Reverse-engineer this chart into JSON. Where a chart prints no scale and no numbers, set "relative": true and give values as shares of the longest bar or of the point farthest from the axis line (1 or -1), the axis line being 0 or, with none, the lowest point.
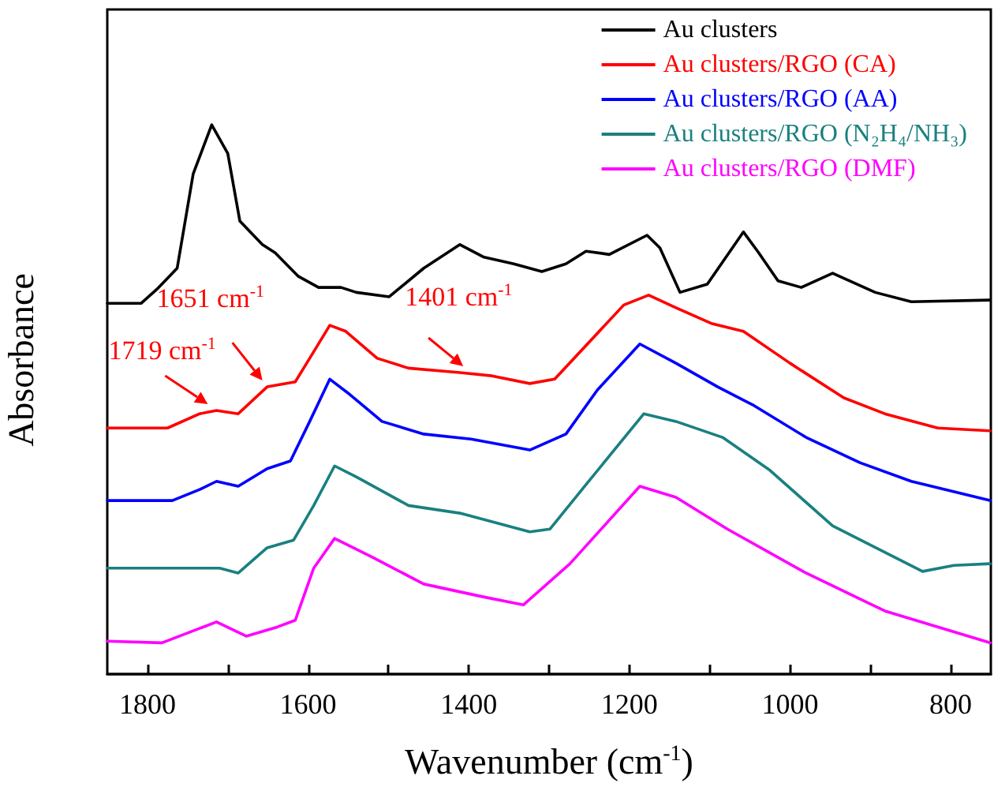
{
  "chart_data": {
    "type": "line",
    "relative": true,
    "xlabel": "Wavenumber (cm$^{-1}$)",
    "ylabel": "Absorbance",
    "tick_labels": "x",
    "legend": "top right",
    "grid": false,
    "marker": "none",
    "line_style": "solid",
    "xlim": [
      1850,
      750
    ],
    "xticks": [
      1800,
      {
        "value": 1700,
        "label": null
      },
      1600,
      {
        "value": 1500,
        "label": null
      },
      1400,
      {
        "value": 1300,
        "label": null
      },
      1200,
      {
        "value": 1100,
        "label": null
      },
      1000,
      {
        "value": 900,
        "label": null
      },
      800
    ],
    "series": [
      {
        "name": "Au clusters",
        "color": "#000000",
        "x": [
          1850,
          1808,
          1788,
          1763,
          1743,
          1720,
          1700,
          1685,
          1657,
          1641,
          1612,
          1587,
          1559,
          1540,
          1499,
          1456,
          1411,
          1381,
          1344,
          1309,
          1279,
          1254,
          1225,
          1178,
          1162,
          1137,
          1103,
          1058,
          1039,
          1015,
          986,
          947,
          894,
          849,
          751
        ],
        "values": [
          0.675,
          0.675,
          0.701,
          0.739,
          0.911,
          1.0,
          0.948,
          0.825,
          0.782,
          0.767,
          0.724,
          0.704,
          0.704,
          0.695,
          0.687,
          0.739,
          0.782,
          0.759,
          0.747,
          0.733,
          0.747,
          0.77,
          0.764,
          0.799,
          0.776,
          0.695,
          0.71,
          0.805,
          0.767,
          0.716,
          0.704,
          0.73,
          0.695,
          0.678,
          0.681
        ]
      },
      {
        "name": "Au clusters/RGO (CA)",
        "color": "#ff0000",
        "x": [
          1850,
          1775,
          1735,
          1714,
          1687,
          1651,
          1616,
          1598,
          1573,
          1553,
          1514,
          1475,
          1411,
          1371,
          1324,
          1293,
          1207,
          1176,
          1142,
          1097,
          1058,
          1000,
          933,
          882,
          816,
          751
        ],
        "values": [
          0.448,
          0.448,
          0.474,
          0.48,
          0.474,
          0.523,
          0.532,
          0.575,
          0.635,
          0.624,
          0.575,
          0.557,
          0.549,
          0.543,
          0.529,
          0.537,
          0.672,
          0.69,
          0.667,
          0.638,
          0.624,
          0.566,
          0.503,
          0.474,
          0.448,
          0.443
        ]
      },
      {
        "name": "Au clusters/RGO (AA)",
        "color": "#0000ff",
        "x": [
          1850,
          1769,
          1735,
          1714,
          1687,
          1651,
          1622,
          1598,
          1573,
          1548,
          1508,
          1456,
          1397,
          1324,
          1279,
          1240,
          1187,
          1142,
          1090,
          1045,
          980,
          913,
          849,
          751
        ],
        "values": [
          0.316,
          0.316,
          0.336,
          0.351,
          0.342,
          0.374,
          0.388,
          0.46,
          0.537,
          0.509,
          0.46,
          0.437,
          0.428,
          0.408,
          0.437,
          0.517,
          0.601,
          0.566,
          0.523,
          0.489,
          0.431,
          0.385,
          0.351,
          0.316
        ]
      },
      {
        "name": "Au clusters/RGO (N₂H₄/NH₃)",
        "color": "#1a8080",
        "x": [
          1850,
          1710,
          1687,
          1651,
          1618,
          1593,
          1567,
          1540,
          1475,
          1411,
          1324,
          1299,
          1254,
          1182,
          1142,
          1084,
          1025,
          947,
          835,
          796,
          751
        ],
        "values": [
          0.193,
          0.193,
          0.184,
          0.23,
          0.244,
          0.307,
          0.379,
          0.359,
          0.307,
          0.293,
          0.259,
          0.264,
          0.345,
          0.474,
          0.46,
          0.431,
          0.371,
          0.27,
          0.187,
          0.198,
          0.201
        ]
      },
      {
        "name": "Au clusters/RGO (DMF)",
        "color": "#ff00ff",
        "x": [
          1850,
          1782,
          1714,
          1677,
          1638,
          1616,
          1593,
          1567,
          1520,
          1456,
          1383,
          1332,
          1274,
          1187,
          1142,
          1078,
          980,
          882,
          751
        ],
        "values": [
          0.06,
          0.057,
          0.095,
          0.069,
          0.086,
          0.098,
          0.193,
          0.247,
          0.213,
          0.164,
          0.141,
          0.126,
          0.201,
          0.342,
          0.322,
          0.264,
          0.184,
          0.115,
          0.057
        ]
      }
    ],
    "annotations": [
      {
        "text": "1719 cm$^{-1}$",
        "x": 1719,
        "y": 0.48
      },
      {
        "text": "1651 cm$^{-1}$",
        "x": 1651,
        "y": 0.523
      },
      {
        "text": "1401 cm$^{-1}$",
        "x": 1401,
        "y": 0.549
      }
    ]
  }
}
